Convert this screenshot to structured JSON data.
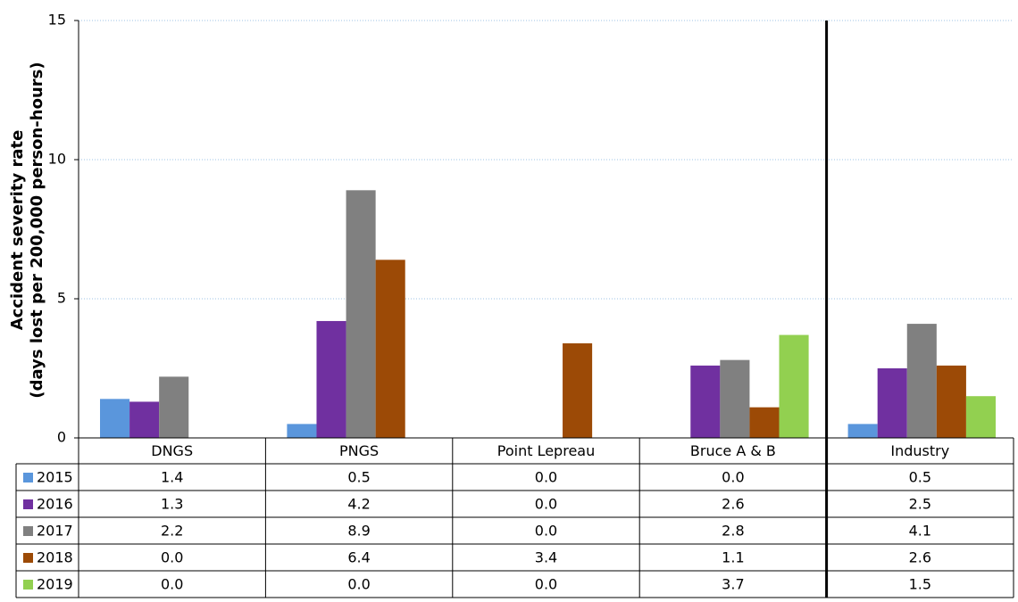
{
  "chart_data": {
    "type": "bar",
    "y_label": [
      "Accident severity rate",
      "(days lost per 200,000 person-hours)"
    ],
    "categories": [
      "DNGS",
      "PNGS",
      "Point Lepreau",
      "Bruce A & B",
      "Industry"
    ],
    "series": [
      {
        "name": "2015",
        "color": "#5a96dc",
        "values": [
          1.4,
          0.5,
          0,
          0,
          0.5
        ],
        "value_labels": [
          "1.4",
          "0.5",
          "0.0",
          "0.0",
          "0.5"
        ]
      },
      {
        "name": "2016",
        "color": "#7030a0",
        "values": [
          1.3,
          4.2,
          0,
          2.6,
          2.5
        ],
        "value_labels": [
          "1.3",
          "4.2",
          "0.0",
          "2.6",
          "2.5"
        ]
      },
      {
        "name": "2017",
        "color": "#808080",
        "values": [
          2.2,
          8.9,
          0,
          2.8,
          4.1
        ],
        "value_labels": [
          "2.2",
          "8.9",
          "0.0",
          "2.8",
          "4.1"
        ]
      },
      {
        "name": "2018",
        "color": "#9c4a06",
        "values": [
          0,
          6.4,
          3.4,
          1.1,
          2.6
        ],
        "value_labels": [
          "0.0",
          "6.4",
          "3.4",
          "1.1",
          "2.6"
        ]
      },
      {
        "name": "2019",
        "color": "#92d050",
        "values": [
          0,
          0,
          0,
          3.7,
          1.5
        ],
        "value_labels": [
          "0.0",
          "0.0",
          "0.0",
          "3.7",
          "1.5"
        ]
      }
    ],
    "ylim": [
      0,
      15
    ],
    "yticks": [
      0,
      5,
      10,
      15
    ],
    "grid": true
  }
}
